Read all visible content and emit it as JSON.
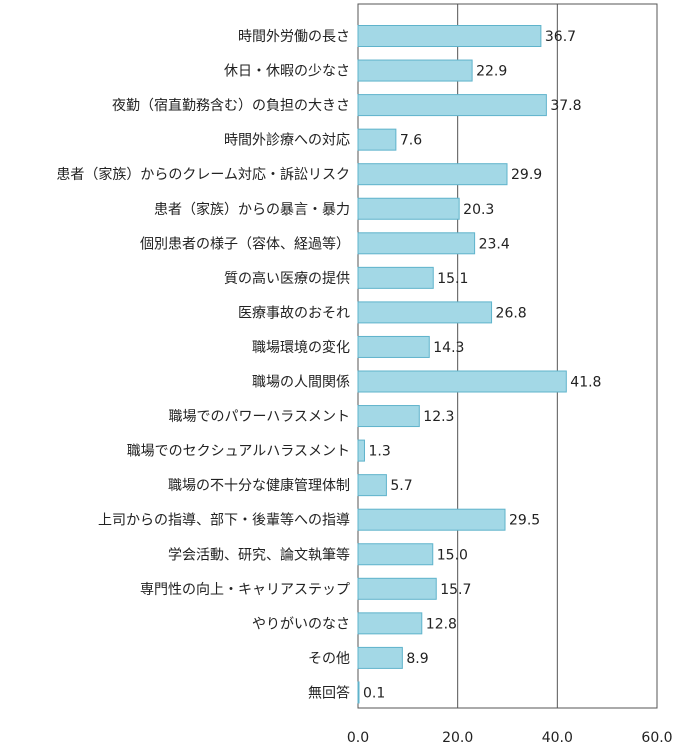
{
  "chart_data": {
    "type": "bar",
    "orientation": "horizontal",
    "categories": [
      "時間外労働の長さ",
      "休日・休暇の少なさ",
      "夜勤（宿直勤務含む）の負担の大きさ",
      "時間外診療への対応",
      "患者（家族）からのクレーム対応・訴訟リスク",
      "患者（家族）からの暴言・暴力",
      "個別患者の様子（容体、経過等）",
      "質の高い医療の提供",
      "医療事故のおそれ",
      "職場環境の変化",
      "職場の人間関係",
      "職場でのパワーハラスメント",
      "職場でのセクシュアルハラスメント",
      "職場の不十分な健康管理体制",
      "上司からの指導、部下・後輩等への指導",
      "学会活動、研究、論文執筆等",
      "専門性の向上・キャリアステップ",
      "やりがいのなさ",
      "その他",
      "無回答"
    ],
    "values": [
      36.7,
      22.9,
      37.8,
      7.6,
      29.9,
      20.3,
      23.4,
      15.1,
      26.8,
      14.3,
      41.8,
      12.3,
      1.3,
      5.7,
      29.5,
      15.0,
      15.7,
      12.8,
      8.9,
      0.1
    ],
    "value_labels": [
      "36.7",
      "22.9",
      "37.8",
      "7.6",
      "29.9",
      "20.3",
      "23.4",
      "15.1",
      "26.8",
      "14.3",
      "41.8",
      "12.3",
      "1.3",
      "5.7",
      "29.5",
      "15.0",
      "15.7",
      "12.8",
      "8.9",
      "0.1"
    ],
    "xlim": [
      0,
      60
    ],
    "xticks": [
      0,
      20,
      40,
      60
    ],
    "xtick_labels": [
      "0.0",
      "20.0",
      "40.0",
      "60.0"
    ],
    "grid": "vertical",
    "bar_color": "#a3d8e6",
    "bar_edge_color": "#5fb3cb",
    "grid_color": "#555555"
  }
}
